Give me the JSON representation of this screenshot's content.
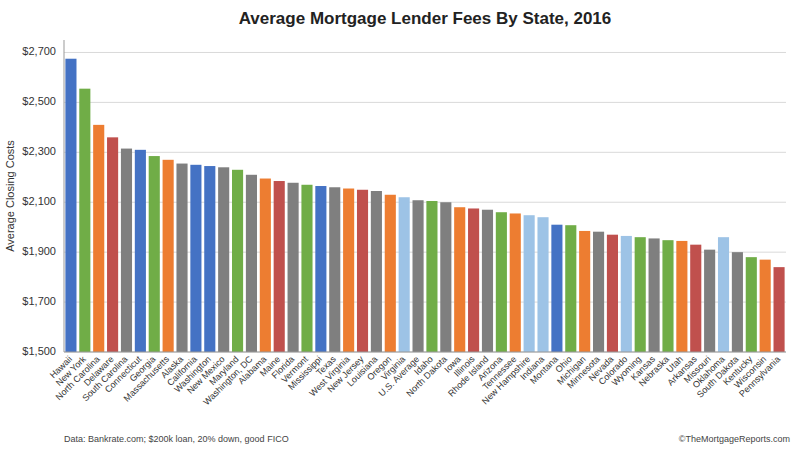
{
  "chart_data": {
    "type": "bar",
    "title": "Average Mortgage Lender Fees By State, 2016",
    "ylabel": "Average Closing Costs",
    "annotations": [
      "Data: Bankrate.com; $200k loan, 20% down, good FICO",
      "©TheMortgageReports.com"
    ],
    "categories": [
      "Hawaii",
      "New York",
      "North Carolina",
      "Delaware",
      "South Carolina",
      "Connecticut",
      "Georgia",
      "Massachusetts",
      "Alaska",
      "California",
      "Washington",
      "New Mexico",
      "Maryland",
      "Washington, DC",
      "Alabama",
      "Maine",
      "Florida",
      "Vermont",
      "Mississippi",
      "Texas",
      "West Virginia",
      "New Jersey",
      "Louisiana",
      "Oregon",
      "Virginia",
      "U.S. Average",
      "Idaho",
      "North Dakota",
      "Iowa",
      "Illinois",
      "Rhode Island",
      "Arizona",
      "Tennessee",
      "New Hampshire",
      "Indiana",
      "Montana",
      "Ohio",
      "Michigan",
      "Minnesota",
      "Nevada",
      "Colorado",
      "Wyoming",
      "Kansas",
      "Nebraska",
      "Utah",
      "Arkansas",
      "Missouri",
      "Oklahoma",
      "South Dakota",
      "Kentucky",
      "Wisconsin",
      "Pennsylvania"
    ],
    "values": [
      2675,
      2555,
      2410,
      2360,
      2315,
      2310,
      2285,
      2270,
      2255,
      2250,
      2245,
      2240,
      2230,
      2210,
      2195,
      2185,
      2178,
      2170,
      2165,
      2160,
      2155,
      2150,
      2145,
      2130,
      2120,
      2108,
      2105,
      2100,
      2080,
      2075,
      2070,
      2060,
      2055,
      2048,
      2040,
      2010,
      2008,
      1985,
      1982,
      1970,
      1965,
      1960,
      1955,
      1948,
      1945,
      1930,
      1910,
      1960,
      1900,
      1880,
      1870,
      1840
    ],
    "colors": [
      "#4472C4",
      "#70AD47",
      "#ED7D31",
      "#C0504D",
      "#7F7F7F",
      "#4472C4",
      "#70AD47",
      "#ED7D31",
      "#7F7F7F",
      "#4472C4",
      "#4472C4",
      "#7F7F7F",
      "#70AD47",
      "#7F7F7F",
      "#ED7D31",
      "#C0504D",
      "#7F7F7F",
      "#70AD47",
      "#4472C4",
      "#7F7F7F",
      "#ED7D31",
      "#C0504D",
      "#7F7F7F",
      "#ED7D31",
      "#9DC3E6",
      "#7F7F7F",
      "#70AD47",
      "#7F7F7F",
      "#ED7D31",
      "#C0504D",
      "#7F7F7F",
      "#70AD47",
      "#ED7D31",
      "#9DC3E6",
      "#9DC3E6",
      "#4472C4",
      "#70AD47",
      "#ED7D31",
      "#7F7F7F",
      "#C0504D",
      "#9DC3E6",
      "#70AD47",
      "#7F7F7F",
      "#70AD47",
      "#ED7D31",
      "#C0504D",
      "#7F7F7F",
      "#9DC3E6",
      "#7F7F7F",
      "#70AD47",
      "#ED7D31",
      "#C0504D"
    ],
    "ylim": [
      1500,
      2750
    ],
    "yticks": [
      {
        "value": 1500,
        "label": "$1,500"
      },
      {
        "value": 1700,
        "label": "$1,700"
      },
      {
        "value": 1900,
        "label": "$1,900"
      },
      {
        "value": 2100,
        "label": "$2,100"
      },
      {
        "value": 2300,
        "label": "$2,300"
      },
      {
        "value": 2500,
        "label": "$2,500"
      },
      {
        "value": 2700,
        "label": "$2,700"
      }
    ],
    "grid": true
  }
}
